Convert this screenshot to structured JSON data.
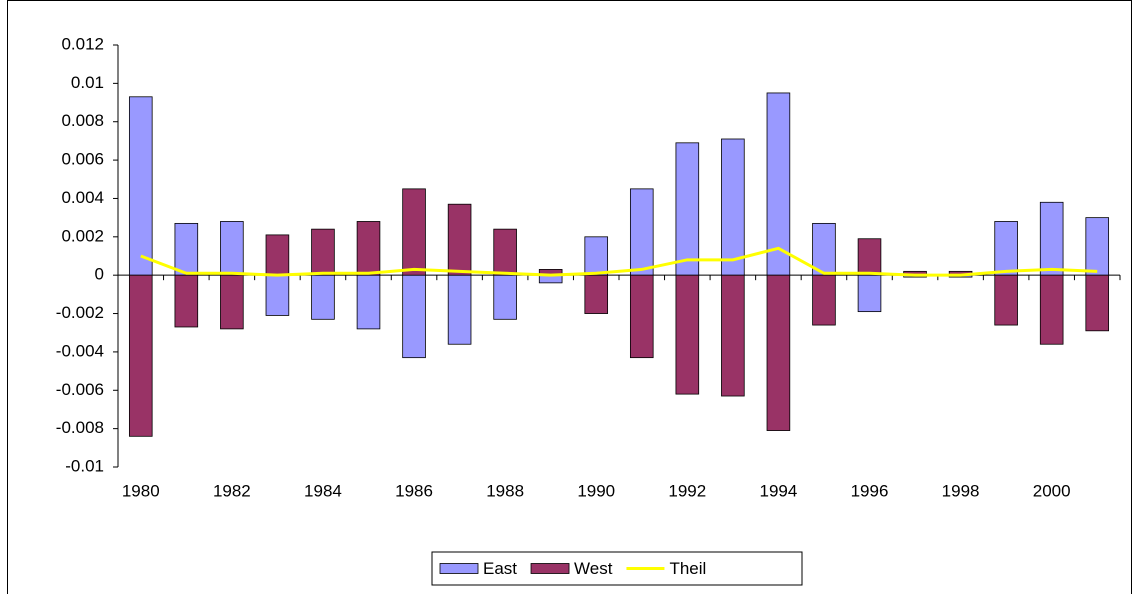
{
  "chart_data": {
    "type": "bar",
    "categories": [
      "1980",
      null,
      "1982",
      null,
      "1984",
      null,
      "1986",
      null,
      "1988",
      null,
      "1990",
      null,
      "1992",
      null,
      "1994",
      null,
      "1996",
      null,
      "1998",
      null,
      "2000",
      null
    ],
    "series": [
      {
        "name": "East",
        "type": "bar",
        "color": "#9999ff",
        "values": [
          0.0093,
          0.0027,
          0.0028,
          -0.0021,
          -0.0023,
          -0.0028,
          -0.0043,
          -0.0036,
          -0.0023,
          -0.0004,
          0.002,
          0.0045,
          0.0069,
          0.0071,
          0.0095,
          0.0027,
          -0.0019,
          -0.0001,
          -0.0001,
          0.0028,
          0.0038,
          0.003
        ]
      },
      {
        "name": "West",
        "type": "bar",
        "color": "#993366",
        "values": [
          -0.0084,
          -0.0027,
          -0.0028,
          0.0021,
          0.0024,
          0.0028,
          0.0045,
          0.0037,
          0.0024,
          0.0003,
          -0.002,
          -0.0043,
          -0.0062,
          -0.0063,
          -0.0081,
          -0.0026,
          0.0019,
          0.0002,
          0.0002,
          -0.0026,
          -0.0036,
          -0.0029
        ]
      },
      {
        "name": "Theil",
        "type": "line",
        "color": "#ffff00",
        "values": [
          0.001,
          0.0001,
          0.0001,
          0,
          0.0001,
          0.0001,
          0.0003,
          0.0002,
          0.0001,
          0,
          0.0001,
          0.0003,
          0.0008,
          0.0008,
          0.0014,
          0.0001,
          0.0001,
          0,
          0,
          0.0002,
          0.0003,
          0.0002
        ]
      }
    ],
    "ylim": [
      -0.01,
      0.012
    ],
    "yticks": [
      -0.01,
      -0.008,
      -0.006,
      -0.004,
      -0.002,
      0,
      0.002,
      0.004,
      0.006,
      0.008,
      0.01,
      0.012
    ],
    "grid": false,
    "legend": "bottom"
  }
}
